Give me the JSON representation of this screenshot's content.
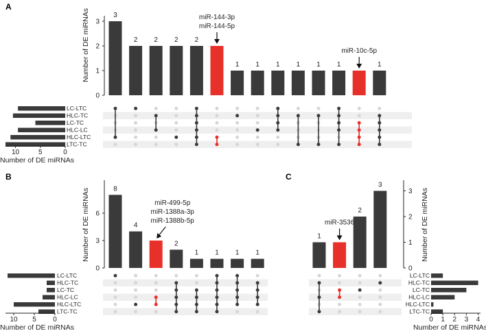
{
  "colors": {
    "bar": "#3a3a3a",
    "highlight": "#e8302a",
    "dot_off": "#d6d6d6",
    "stripe": "#efefef"
  },
  "chart_data": [
    {
      "panel": "A",
      "type": "bar",
      "subtype": "upset",
      "ylabel": "Number of DE miRNAs",
      "ylim": [
        0,
        3
      ],
      "yticks": [
        "0",
        "1",
        "2",
        "3"
      ],
      "set_xlabel": "Number of DE miRNAs",
      "set_xticks": [
        "10",
        "5",
        "0"
      ],
      "set_xlim": [
        0,
        12
      ],
      "sets": [
        {
          "name": "LC-LTC",
          "size": 9.5
        },
        {
          "name": "HLC-TC",
          "size": 10.5
        },
        {
          "name": "LC-TC",
          "size": 6
        },
        {
          "name": "HLC-LC",
          "size": 9.5
        },
        {
          "name": "HLC-LTC",
          "size": 11
        },
        {
          "name": "LTC-TC",
          "size": 12
        }
      ],
      "intersections": [
        {
          "value": 3,
          "label": "3",
          "members": [
            0,
            4
          ],
          "highlight": false
        },
        {
          "value": 2,
          "label": "2",
          "members": [
            0
          ],
          "highlight": false
        },
        {
          "value": 2,
          "label": "2",
          "members": [
            1,
            3
          ],
          "highlight": false
        },
        {
          "value": 2,
          "label": "2",
          "members": [
            4
          ],
          "highlight": false
        },
        {
          "value": 2,
          "label": "2",
          "members": [
            0,
            1,
            2,
            3,
            4,
            5
          ],
          "highlight": false
        },
        {
          "value": 2,
          "label": "",
          "members": [
            4,
            5
          ],
          "highlight": true
        },
        {
          "value": 1,
          "label": "1",
          "members": [
            1
          ],
          "highlight": false
        },
        {
          "value": 1,
          "label": "1",
          "members": [
            3
          ],
          "highlight": false
        },
        {
          "value": 1,
          "label": "1",
          "members": [
            0,
            1,
            2,
            3
          ],
          "highlight": false
        },
        {
          "value": 1,
          "label": "1",
          "members": [
            1,
            5
          ],
          "highlight": false
        },
        {
          "value": 1,
          "label": "1",
          "members": [
            1,
            5
          ],
          "highlight": false
        },
        {
          "value": 1,
          "label": "1",
          "members": [
            0,
            1,
            2,
            3,
            5
          ],
          "highlight": false
        },
        {
          "value": 1,
          "label": "",
          "members": [
            2,
            3,
            4,
            5
          ],
          "highlight": true
        },
        {
          "value": 1,
          "label": "1",
          "members": [
            1,
            2,
            3,
            4,
            5
          ],
          "highlight": false
        }
      ],
      "annotations": [
        {
          "bar_index": 5,
          "lines": [
            "miR-144-3p",
            "miR-144-5p"
          ]
        },
        {
          "bar_index": 12,
          "lines": [
            "miR-10c-5p"
          ]
        }
      ]
    },
    {
      "panel": "B",
      "type": "bar",
      "subtype": "upset",
      "ylabel": "Number of DE miRNAs",
      "ylim": [
        0,
        9
      ],
      "yticks": [
        "0",
        "3",
        "6"
      ],
      "set_xlabel": "Number of DE miRNAs",
      "set_xticks": [
        "10",
        "5",
        "0"
      ],
      "set_xlim": [
        0,
        12
      ],
      "sets": [
        {
          "name": "LC-LTC",
          "size": 11.5
        },
        {
          "name": "HLC-TC",
          "size": 2
        },
        {
          "name": "LC-TC",
          "size": 2
        },
        {
          "name": "HLC-LC",
          "size": 3
        },
        {
          "name": "HLC-LTC",
          "size": 10
        },
        {
          "name": "LTC-TC",
          "size": 4
        }
      ],
      "intersections": [
        {
          "value": 8,
          "label": "8",
          "members": [
            0
          ],
          "highlight": false
        },
        {
          "value": 4,
          "label": "4",
          "members": [
            4
          ],
          "highlight": false
        },
        {
          "value": 3,
          "label": "",
          "members": [
            3,
            4
          ],
          "highlight": true
        },
        {
          "value": 2,
          "label": "2",
          "members": [
            1,
            2,
            3,
            4,
            5
          ],
          "highlight": false
        },
        {
          "value": 1,
          "label": "1",
          "members": [
            2,
            3,
            4,
            5
          ],
          "highlight": false
        },
        {
          "value": 1,
          "label": "1",
          "members": [
            0,
            1,
            2,
            3,
            4,
            5
          ],
          "highlight": false
        },
        {
          "value": 1,
          "label": "1",
          "members": [
            0,
            1,
            2,
            3,
            4
          ],
          "highlight": false
        },
        {
          "value": 1,
          "label": "1",
          "members": [
            1,
            2,
            3,
            4
          ],
          "highlight": false
        }
      ],
      "annotations": [
        {
          "bar_index": 2,
          "lines": [
            "miR-499-5p",
            "miR-1388a-3p",
            "miR-1388b-5p"
          ]
        }
      ]
    },
    {
      "panel": "C",
      "type": "bar",
      "subtype": "upset",
      "ylabel": "Number of DE miRNAs",
      "ylim": [
        0,
        3.2
      ],
      "yticks": [
        "0",
        "1",
        "2",
        "3"
      ],
      "set_xlabel": "Number of DE miRNAs",
      "set_xticks": [
        "0",
        "1",
        "2",
        "3",
        "4"
      ],
      "set_xlim": [
        0,
        4.2
      ],
      "sets": [
        {
          "name": "LC-LTC",
          "size": 1
        },
        {
          "name": "HLC-TC",
          "size": 4
        },
        {
          "name": "LC-TC",
          "size": 3
        },
        {
          "name": "HLC-LC",
          "size": 2
        },
        {
          "name": "HLC-LTC",
          "size": 0.2
        },
        {
          "name": "LTC-TC",
          "size": 1
        }
      ],
      "intersections": [
        {
          "value": 1,
          "label": "1",
          "members": [
            1,
            3,
            5
          ],
          "highlight": false
        },
        {
          "value": 1,
          "label": "",
          "members": [
            2,
            3
          ],
          "highlight": true
        },
        {
          "value": 2,
          "label": "2",
          "members": [
            2
          ],
          "highlight": false
        },
        {
          "value": 3,
          "label": "3",
          "members": [
            1
          ],
          "highlight": false
        }
      ],
      "annotations": [
        {
          "bar_index": 1,
          "lines": [
            "miR-3536"
          ]
        }
      ]
    }
  ]
}
